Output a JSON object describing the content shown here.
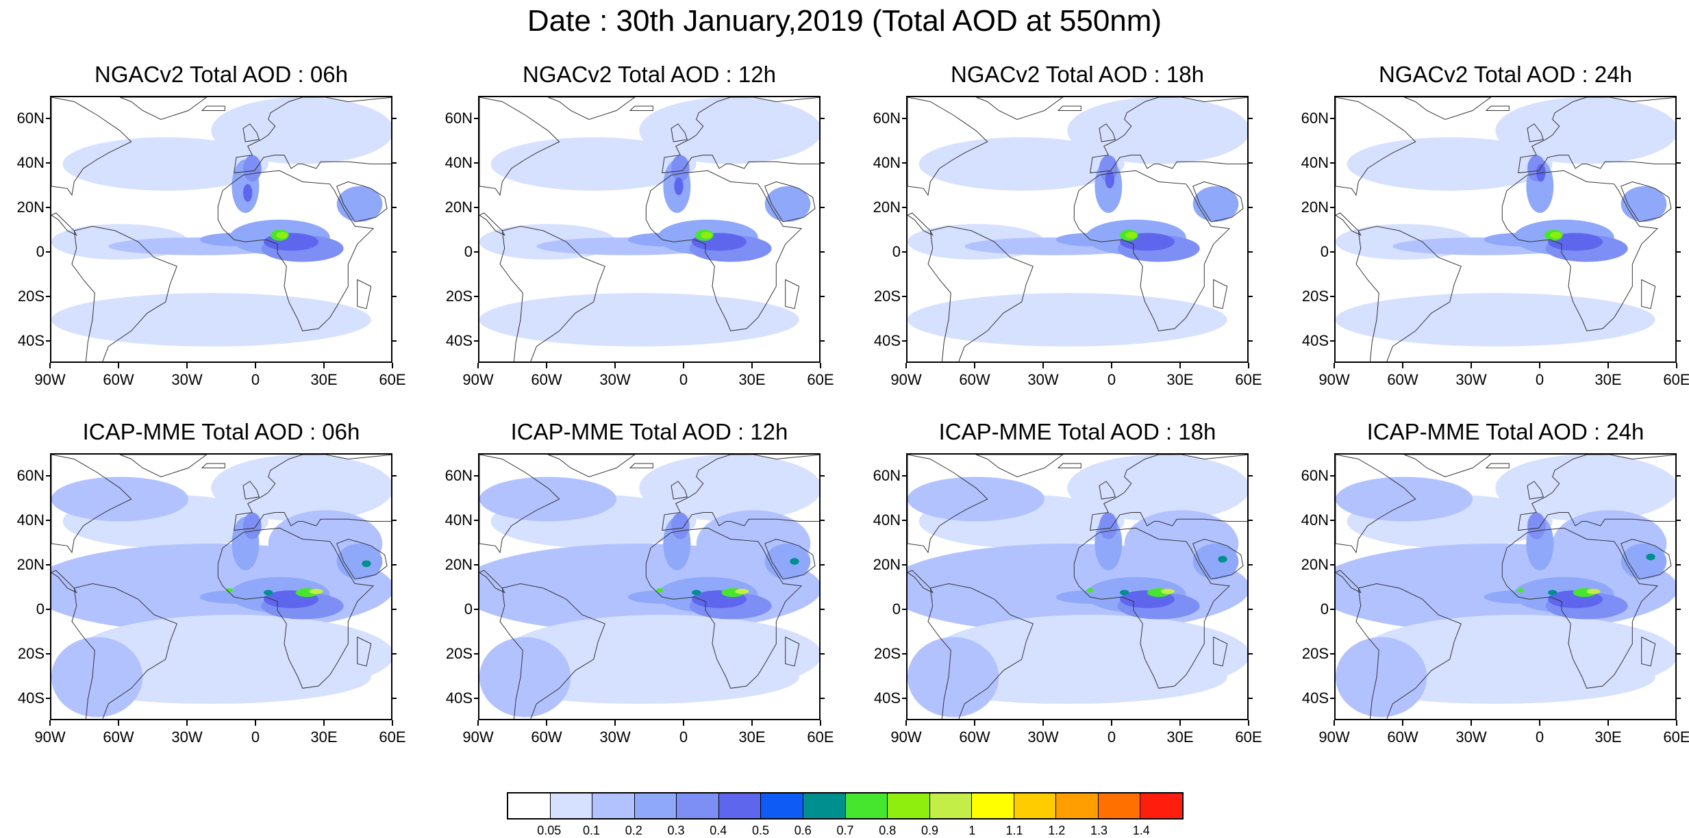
{
  "figure": {
    "title": "Date : 30th January,2019 (Total AOD at 550nm)"
  },
  "map_axes": {
    "lat_labels": [
      "60N",
      "40N",
      "20N",
      "0",
      "20S",
      "40S"
    ],
    "lat_values": [
      60,
      40,
      20,
      0,
      -20,
      -40
    ],
    "lon_labels": [
      "90W",
      "60W",
      "30W",
      "0",
      "30E",
      "60E"
    ],
    "lon_values": [
      -90,
      -60,
      -30,
      0,
      30,
      60
    ],
    "lat_range": [
      -50,
      70
    ],
    "lon_range": [
      -90,
      60
    ]
  },
  "panels": [
    {
      "model": "NGACv2",
      "forecast_hour": "06h",
      "title": "NGACv2 Total AOD : 06h",
      "row": 0,
      "col": 0
    },
    {
      "model": "NGACv2",
      "forecast_hour": "12h",
      "title": "NGACv2 Total AOD : 12h",
      "row": 0,
      "col": 1
    },
    {
      "model": "NGACv2",
      "forecast_hour": "18h",
      "title": "NGACv2 Total AOD : 18h",
      "row": 0,
      "col": 2
    },
    {
      "model": "NGACv2",
      "forecast_hour": "24h",
      "title": "NGACv2 Total AOD : 24h",
      "row": 0,
      "col": 3
    },
    {
      "model": "ICAP-MME",
      "forecast_hour": "06h",
      "title": "ICAP-MME Total AOD : 06h",
      "row": 1,
      "col": 0
    },
    {
      "model": "ICAP-MME",
      "forecast_hour": "12h",
      "title": "ICAP-MME Total AOD : 12h",
      "row": 1,
      "col": 1
    },
    {
      "model": "ICAP-MME",
      "forecast_hour": "18h",
      "title": "ICAP-MME Total AOD : 18h",
      "row": 1,
      "col": 2
    },
    {
      "model": "ICAP-MME",
      "forecast_hour": "24h",
      "title": "ICAP-MME Total AOD : 24h",
      "row": 1,
      "col": 3
    }
  ],
  "colorbar": {
    "labels": [
      "0.05",
      "0.1",
      "0.2",
      "0.3",
      "0.4",
      "0.5",
      "0.6",
      "0.7",
      "0.8",
      "0.9",
      "1",
      "1.1",
      "1.2",
      "1.3",
      "1.4"
    ],
    "colors": [
      "#ffffff",
      "#d6e0ff",
      "#b2c2ff",
      "#8fa8fa",
      "#7d8ff5",
      "#5e66ee",
      "#0e5cf5",
      "#008f8f",
      "#47e62e",
      "#8fee0e",
      "#c2ee47",
      "#ffff00",
      "#ffcc00",
      "#ff9e00",
      "#ff7000",
      "#ff1e0e"
    ]
  }
}
